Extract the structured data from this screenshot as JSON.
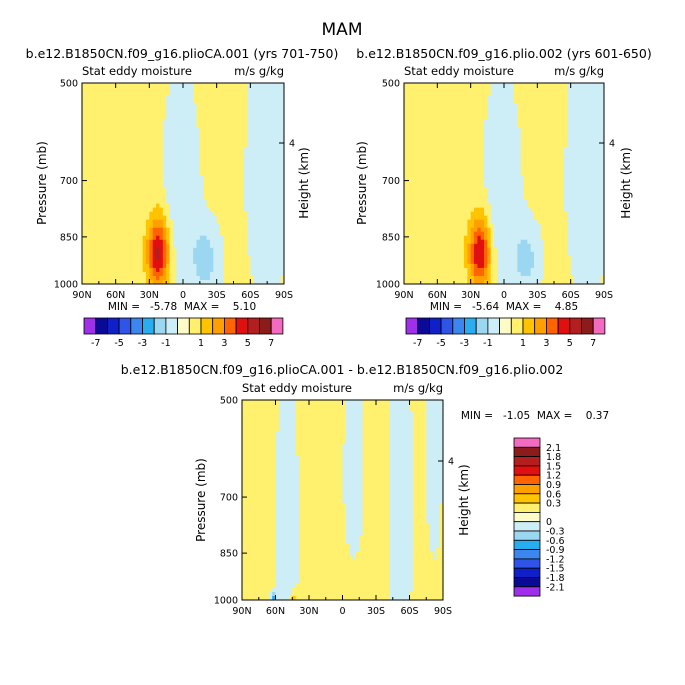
{
  "figure": {
    "title": "MAM"
  },
  "chart_data": [
    {
      "type": "heatmap",
      "title": "b.e12.B1850CN.f09_g16.plioCA.001 (yrs 701-750)",
      "subtitle_left": "Stat eddy moisture",
      "subtitle_right": "m/s g/kg",
      "ylabel": "Pressure (mb)",
      "ylabel_right": "Height (km)",
      "x_ticks": [
        "90N",
        "60N",
        "30N",
        "0",
        "30S",
        "60S",
        "90S"
      ],
      "x_tick_values": [
        90,
        60,
        30,
        0,
        -30,
        -60,
        -90
      ],
      "y_ticks": [
        "500",
        "700",
        "850",
        "1000"
      ],
      "y_tick_values": [
        500,
        700,
        850,
        1000
      ],
      "right_ticks": [
        "4"
      ],
      "right_tick_values": [
        4
      ],
      "stats": "MIN =   -5.78  MAX =    5.10",
      "min": -5.78,
      "max": 5.1,
      "features": [
        {
          "lat": 22,
          "p": 900,
          "sigma_lat": 7,
          "sigma_p": 75,
          "amp": 5.1
        },
        {
          "lat": 2,
          "p": 760,
          "sigma_lat": 10,
          "sigma_p": 160,
          "amp": -1.2
        },
        {
          "lat": -20,
          "p": 920,
          "sigma_lat": 8,
          "sigma_p": 70,
          "amp": -1.8
        },
        {
          "lat": -75,
          "p": 700,
          "sigma_lat": 12,
          "sigma_p": 220,
          "amp": -0.8
        }
      ]
    },
    {
      "type": "heatmap",
      "title": "b.e12.B1850CN.f09_g16.plio.002 (yrs 601-650)",
      "subtitle_left": "Stat eddy moisture",
      "subtitle_right": "m/s g/kg",
      "ylabel": "Pressure (mb)",
      "ylabel_right": "Height (km)",
      "x_ticks": [
        "90N",
        "60N",
        "30N",
        "0",
        "30S",
        "60S",
        "90S"
      ],
      "x_tick_values": [
        90,
        60,
        30,
        0,
        -30,
        -60,
        -90
      ],
      "y_ticks": [
        "500",
        "700",
        "850",
        "1000"
      ],
      "y_tick_values": [
        500,
        700,
        850,
        1000
      ],
      "right_ticks": [
        "4"
      ],
      "right_tick_values": [
        4
      ],
      "stats": "MIN =   -5.64  MAX =    4.85",
      "min": -5.64,
      "max": 4.85,
      "features": [
        {
          "lat": 22,
          "p": 900,
          "sigma_lat": 7,
          "sigma_p": 75,
          "amp": 4.85
        },
        {
          "lat": 2,
          "p": 760,
          "sigma_lat": 10,
          "sigma_p": 160,
          "amp": -1.2
        },
        {
          "lat": -20,
          "p": 920,
          "sigma_lat": 8,
          "sigma_p": 70,
          "amp": -1.6
        },
        {
          "lat": -75,
          "p": 700,
          "sigma_lat": 12,
          "sigma_p": 220,
          "amp": -0.8
        }
      ]
    },
    {
      "type": "heatmap",
      "title": "b.e12.B1850CN.f09_g16.plioCA.001 - b.e12.B1850CN.f09_g16.plio.002",
      "subtitle_left": "Stat eddy moisture",
      "subtitle_right": "m/s g/kg",
      "ylabel": "Pressure (mb)",
      "ylabel_right": "Height (km)",
      "x_ticks": [
        "90N",
        "60N",
        "30N",
        "0",
        "30S",
        "60S",
        "90S"
      ],
      "x_tick_values": [
        90,
        60,
        30,
        0,
        -30,
        -60,
        -90
      ],
      "y_ticks": [
        "500",
        "700",
        "850",
        "1000"
      ],
      "y_tick_values": [
        500,
        700,
        850,
        1000
      ],
      "right_ticks": [
        "4"
      ],
      "right_tick_values": [
        4
      ],
      "stats": "MIN =   -1.05  MAX =    0.37",
      "min": -1.05,
      "max": 0.37,
      "features": [
        {
          "lat": 50,
          "p": 780,
          "sigma_lat": 6,
          "sigma_p": 200,
          "amp": -0.05
        },
        {
          "lat": -10,
          "p": 650,
          "sigma_lat": 5,
          "sigma_p": 120,
          "amp": -0.05
        },
        {
          "lat": -52,
          "p": 750,
          "sigma_lat": 6,
          "sigma_p": 220,
          "amp": -0.06
        },
        {
          "lat": -82,
          "p": 600,
          "sigma_lat": 4,
          "sigma_p": 150,
          "amp": -0.05
        },
        {
          "lat": 61,
          "p": 990,
          "sigma_lat": 1.5,
          "sigma_p": 10,
          "amp": -0.7
        },
        {
          "lat": 43,
          "p": 990,
          "sigma_lat": 1.5,
          "sigma_p": 10,
          "amp": 0.37
        }
      ]
    }
  ],
  "colorbars": {
    "top": {
      "labels": [
        "-7",
        "-5",
        "-3",
        "-1",
        "1",
        "3",
        "5",
        "7"
      ],
      "colors": [
        "#9f2fe8",
        "#0a0a96",
        "#1020c8",
        "#2f54e8",
        "#3c86f0",
        "#28aef0",
        "#9cd7f2",
        "#cdeef6",
        "#fffbc9",
        "#fff06e",
        "#ffc300",
        "#ffa000",
        "#ff6400",
        "#e01010",
        "#b41e1e",
        "#8c1c1c",
        "#f26bc0"
      ]
    },
    "diff": {
      "labels": [
        "2.1",
        "1.8",
        "1.5",
        "1.2",
        "0.9",
        "0.6",
        "0.3",
        "0",
        "-0.3",
        "-0.6",
        "-0.9",
        "-1.2",
        "-1.5",
        "-1.8",
        "-2.1"
      ],
      "colors_top_to_bottom": [
        "#f26bc0",
        "#8c1c1c",
        "#b41e1e",
        "#e01010",
        "#ff6400",
        "#ffa000",
        "#ffc300",
        "#fff06e",
        "#fffbc9",
        "#cdeef6",
        "#9cd7f2",
        "#28aef0",
        "#3c86f0",
        "#2f54e8",
        "#1020c8",
        "#0a0a96",
        "#9f2fe8"
      ]
    }
  }
}
